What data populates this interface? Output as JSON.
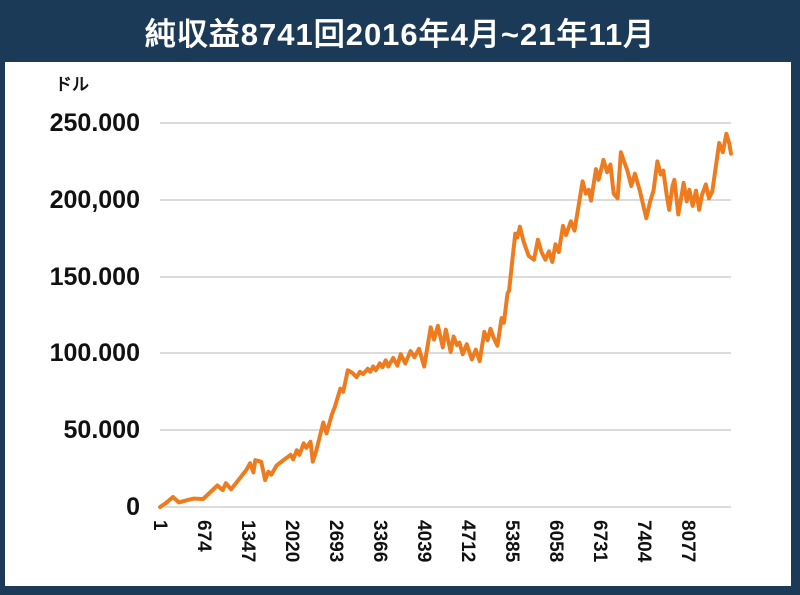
{
  "window": {
    "title_bar": {
      "title": "純収益8741回2016年4月~21年11月"
    }
  },
  "colors": {
    "frame_navy": "#1b3a57",
    "panel_white": "#ffffff",
    "line_orange": "#ee7c1e",
    "gridline_gray": "#dcdcdc",
    "label_black": "#111111",
    "title_white": "#ffffff"
  },
  "chart_data": {
    "type": "line",
    "title": "純収益8741回2016年4月~21年11月",
    "unit_label": "ドル",
    "xlabel": "",
    "ylabel": "ドル",
    "grid": true,
    "legend": "none",
    "xlim": [
      1,
      8741
    ],
    "ylim": [
      0,
      250000
    ],
    "y_ticks": [
      {
        "value": 250000,
        "label": "250.000"
      },
      {
        "value": 200000,
        "label": "200,000"
      },
      {
        "value": 150000,
        "label": "150.000"
      },
      {
        "value": 100000,
        "label": "100.000"
      },
      {
        "value": 50000,
        "label": "50.000"
      },
      {
        "value": 0,
        "label": "0"
      }
    ],
    "x_ticks": [
      {
        "value": 1,
        "label": "1"
      },
      {
        "value": 674,
        "label": "674"
      },
      {
        "value": 1347,
        "label": "1347"
      },
      {
        "value": 2020,
        "label": "2020"
      },
      {
        "value": 2693,
        "label": "2693"
      },
      {
        "value": 3366,
        "label": "3366"
      },
      {
        "value": 4039,
        "label": "4039"
      },
      {
        "value": 4712,
        "label": "4712"
      },
      {
        "value": 5385,
        "label": "5385"
      },
      {
        "value": 6058,
        "label": "6058"
      },
      {
        "value": 6731,
        "label": "6731"
      },
      {
        "value": 7404,
        "label": "7404"
      },
      {
        "value": 8077,
        "label": "8077"
      }
    ],
    "series": [
      {
        "color": "#ee7c1e",
        "points": [
          [
            1,
            0
          ],
          [
            90,
            2500
          ],
          [
            200,
            6500
          ],
          [
            290,
            3000
          ],
          [
            420,
            4500
          ],
          [
            520,
            5500
          ],
          [
            660,
            5200
          ],
          [
            880,
            14000
          ],
          [
            960,
            11000
          ],
          [
            1010,
            15500
          ],
          [
            1090,
            11500
          ],
          [
            1320,
            24000
          ],
          [
            1380,
            28500
          ],
          [
            1430,
            22500
          ],
          [
            1460,
            30500
          ],
          [
            1550,
            29500
          ],
          [
            1610,
            17500
          ],
          [
            1660,
            23000
          ],
          [
            1705,
            21000
          ],
          [
            1785,
            27000
          ],
          [
            1890,
            30500
          ],
          [
            2000,
            34000
          ],
          [
            2040,
            31000
          ],
          [
            2095,
            37000
          ],
          [
            2135,
            34000
          ],
          [
            2200,
            41500
          ],
          [
            2240,
            38500
          ],
          [
            2305,
            42500
          ],
          [
            2340,
            29500
          ],
          [
            2395,
            37000
          ],
          [
            2500,
            55000
          ],
          [
            2550,
            48000
          ],
          [
            2630,
            60000
          ],
          [
            2680,
            65500
          ],
          [
            2760,
            77000
          ],
          [
            2805,
            75000
          ],
          [
            2875,
            89000
          ],
          [
            2940,
            87500
          ],
          [
            3010,
            84500
          ],
          [
            3060,
            88000
          ],
          [
            3110,
            86500
          ],
          [
            3180,
            90000
          ],
          [
            3220,
            88000
          ],
          [
            3265,
            91500
          ],
          [
            3305,
            89000
          ],
          [
            3365,
            93500
          ],
          [
            3405,
            91000
          ],
          [
            3455,
            95500
          ],
          [
            3495,
            91500
          ],
          [
            3570,
            97000
          ],
          [
            3635,
            92000
          ],
          [
            3685,
            99500
          ],
          [
            3755,
            93500
          ],
          [
            3835,
            101500
          ],
          [
            3895,
            97500
          ],
          [
            3965,
            103000
          ],
          [
            4045,
            91500
          ],
          [
            4145,
            117000
          ],
          [
            4195,
            109000
          ],
          [
            4255,
            118000
          ],
          [
            4330,
            104000
          ],
          [
            4375,
            115500
          ],
          [
            4450,
            101000
          ],
          [
            4495,
            111000
          ],
          [
            4545,
            105500
          ],
          [
            4585,
            107000
          ],
          [
            4635,
            99500
          ],
          [
            4695,
            106000
          ],
          [
            4775,
            96000
          ],
          [
            4835,
            102500
          ],
          [
            4895,
            95000
          ],
          [
            4965,
            114000
          ],
          [
            5015,
            108500
          ],
          [
            5060,
            116000
          ],
          [
            5105,
            110500
          ],
          [
            5165,
            105000
          ],
          [
            5230,
            123000
          ],
          [
            5265,
            120000
          ],
          [
            5320,
            139000
          ],
          [
            5345,
            141000
          ],
          [
            5395,
            161000
          ],
          [
            5440,
            178000
          ],
          [
            5470,
            175500
          ],
          [
            5510,
            182500
          ],
          [
            5565,
            173000
          ],
          [
            5645,
            163500
          ],
          [
            5725,
            161000
          ],
          [
            5785,
            174000
          ],
          [
            5840,
            166000
          ],
          [
            5900,
            161000
          ],
          [
            5955,
            166500
          ],
          [
            6005,
            159500
          ],
          [
            6055,
            171000
          ],
          [
            6105,
            166000
          ],
          [
            6170,
            183000
          ],
          [
            6215,
            177000
          ],
          [
            6290,
            186000
          ],
          [
            6345,
            180000
          ],
          [
            6470,
            212000
          ],
          [
            6520,
            204000
          ],
          [
            6565,
            206500
          ],
          [
            6600,
            199500
          ],
          [
            6675,
            220000
          ],
          [
            6715,
            213000
          ],
          [
            6790,
            226000
          ],
          [
            6845,
            218000
          ],
          [
            6895,
            223000
          ],
          [
            6945,
            204000
          ],
          [
            7005,
            201000
          ],
          [
            7055,
            231000
          ],
          [
            7095,
            226000
          ],
          [
            7155,
            219000
          ],
          [
            7215,
            209000
          ],
          [
            7270,
            217000
          ],
          [
            7345,
            206000
          ],
          [
            7445,
            188000
          ],
          [
            7505,
            199000
          ],
          [
            7555,
            206000
          ],
          [
            7615,
            225000
          ],
          [
            7665,
            216500
          ],
          [
            7705,
            219000
          ],
          [
            7755,
            203500
          ],
          [
            7795,
            193500
          ],
          [
            7845,
            209000
          ],
          [
            7875,
            213000
          ],
          [
            7935,
            190500
          ],
          [
            7985,
            203000
          ],
          [
            8015,
            211000
          ],
          [
            8065,
            199000
          ],
          [
            8105,
            206500
          ],
          [
            8155,
            196000
          ],
          [
            8205,
            206000
          ],
          [
            8255,
            193500
          ],
          [
            8295,
            203000
          ],
          [
            8355,
            210000
          ],
          [
            8405,
            201000
          ],
          [
            8455,
            205500
          ],
          [
            8560,
            237000
          ],
          [
            8615,
            231000
          ],
          [
            8670,
            243000
          ],
          [
            8715,
            236500
          ],
          [
            8741,
            230000
          ]
        ]
      }
    ]
  }
}
